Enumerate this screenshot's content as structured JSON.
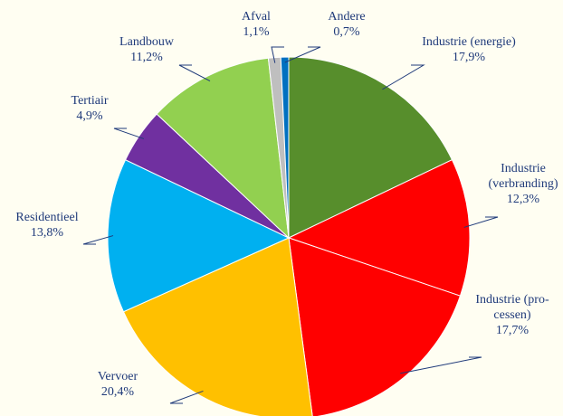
{
  "chart_data": {
    "type": "pie",
    "categories": [
      "Industrie (energie)",
      "Industrie (verbranding)",
      "Industrie (pro-cessen)",
      "Vervoer",
      "Residentieel",
      "Tertiair",
      "Landbouw",
      "Afval",
      "Andere"
    ],
    "values": [
      17.9,
      12.3,
      17.7,
      20.4,
      13.8,
      4.9,
      11.2,
      1.1,
      0.7
    ],
    "value_labels": [
      "17,9%",
      "12,3%",
      "17,7%",
      "20,4%",
      "13,8%",
      "4,9%",
      "11,2%",
      "1,1%",
      "0,7%"
    ],
    "colors": [
      "#578e2c",
      "#ff0000",
      "#ff0000",
      "#ffc000",
      "#00b0f0",
      "#7030a0",
      "#92d050",
      "#bfbfbf",
      "#0070c0"
    ]
  }
}
